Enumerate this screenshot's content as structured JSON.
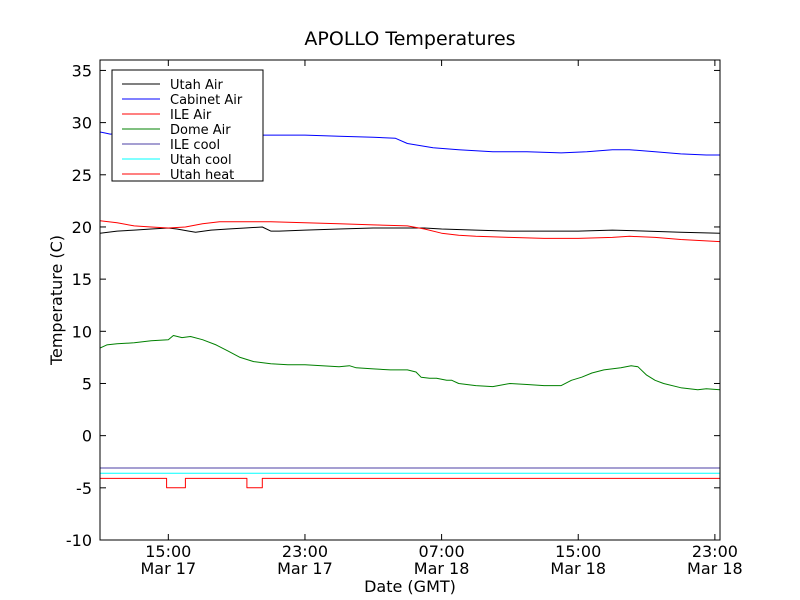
{
  "chart_data": {
    "type": "line",
    "title": "APOLLO Temperatures",
    "xlabel": "Date (GMT)",
    "ylabel": "Temperature (C)",
    "xlim": [
      11.0,
      47.3
    ],
    "ylim": [
      -10,
      36
    ],
    "x_unit": "hours since 00:00 GMT Mar 17",
    "yticks": [
      -10,
      -5,
      0,
      5,
      10,
      15,
      20,
      25,
      30,
      35
    ],
    "xticks": [
      {
        "x": 15,
        "time": "15:00",
        "date": "Mar 17"
      },
      {
        "x": 23,
        "time": "23:00",
        "date": "Mar 17"
      },
      {
        "x": 31,
        "time": "07:00",
        "date": "Mar 18"
      },
      {
        "x": 39,
        "time": "15:00",
        "date": "Mar 18"
      },
      {
        "x": 47,
        "time": "23:00",
        "date": "Mar 18"
      }
    ],
    "legend_position": "top-left",
    "series": [
      {
        "name": "Utah Air",
        "color": "#000000",
        "points": [
          [
            11.0,
            19.4
          ],
          [
            12.0,
            19.6
          ],
          [
            13.0,
            19.7
          ],
          [
            14.0,
            19.8
          ],
          [
            15.0,
            19.9
          ],
          [
            15.5,
            19.8
          ],
          [
            16.2,
            19.6
          ],
          [
            16.6,
            19.5
          ],
          [
            17.5,
            19.7
          ],
          [
            18.5,
            19.8
          ],
          [
            19.5,
            19.9
          ],
          [
            20.5,
            20.0
          ],
          [
            21.0,
            19.6
          ],
          [
            21.5,
            19.6
          ],
          [
            23.0,
            19.7
          ],
          [
            25.0,
            19.8
          ],
          [
            27.0,
            19.9
          ],
          [
            29.0,
            19.9
          ],
          [
            30.0,
            19.9
          ],
          [
            31.0,
            19.8
          ],
          [
            33.0,
            19.7
          ],
          [
            35.0,
            19.6
          ],
          [
            37.0,
            19.6
          ],
          [
            39.0,
            19.6
          ],
          [
            41.0,
            19.7
          ],
          [
            43.0,
            19.6
          ],
          [
            45.0,
            19.5
          ],
          [
            47.3,
            19.4
          ]
        ]
      },
      {
        "name": "Cabinet Air",
        "color": "#0000ff",
        "points": [
          [
            11.0,
            29.1
          ],
          [
            11.3,
            29.0
          ],
          [
            11.6,
            28.9
          ],
          [
            12.5,
            29.0
          ],
          [
            14.0,
            29.1
          ],
          [
            15.0,
            29.1
          ],
          [
            16.0,
            29.0
          ],
          [
            17.5,
            28.9
          ],
          [
            19.0,
            28.8
          ],
          [
            21.0,
            28.8
          ],
          [
            23.0,
            28.8
          ],
          [
            25.0,
            28.7
          ],
          [
            27.0,
            28.6
          ],
          [
            28.3,
            28.5
          ],
          [
            29.0,
            28.0
          ],
          [
            30.5,
            27.6
          ],
          [
            32.0,
            27.4
          ],
          [
            34.0,
            27.2
          ],
          [
            36.0,
            27.2
          ],
          [
            38.0,
            27.1
          ],
          [
            39.5,
            27.2
          ],
          [
            41.0,
            27.4
          ],
          [
            42.0,
            27.4
          ],
          [
            43.5,
            27.2
          ],
          [
            45.0,
            27.0
          ],
          [
            46.5,
            26.9
          ],
          [
            47.3,
            26.9
          ]
        ]
      },
      {
        "name": "ILE Air",
        "color": "#ff0000",
        "points": [
          [
            11.0,
            20.6
          ],
          [
            12.0,
            20.4
          ],
          [
            13.0,
            20.1
          ],
          [
            14.0,
            20.0
          ],
          [
            15.0,
            19.9
          ],
          [
            16.0,
            20.0
          ],
          [
            17.0,
            20.3
          ],
          [
            18.0,
            20.5
          ],
          [
            19.0,
            20.5
          ],
          [
            21.0,
            20.5
          ],
          [
            23.0,
            20.4
          ],
          [
            25.0,
            20.3
          ],
          [
            27.0,
            20.2
          ],
          [
            29.0,
            20.1
          ],
          [
            30.0,
            19.8
          ],
          [
            31.0,
            19.4
          ],
          [
            32.0,
            19.2
          ],
          [
            33.0,
            19.1
          ],
          [
            35.0,
            19.0
          ],
          [
            37.0,
            18.9
          ],
          [
            39.0,
            18.9
          ],
          [
            41.0,
            19.0
          ],
          [
            42.0,
            19.1
          ],
          [
            43.5,
            19.0
          ],
          [
            45.0,
            18.8
          ],
          [
            47.3,
            18.6
          ]
        ]
      },
      {
        "name": "Dome Air",
        "color": "#008000",
        "points": [
          [
            11.0,
            8.4
          ],
          [
            11.4,
            8.7
          ],
          [
            12.0,
            8.8
          ],
          [
            13.0,
            8.9
          ],
          [
            14.0,
            9.1
          ],
          [
            15.0,
            9.2
          ],
          [
            15.3,
            9.6
          ],
          [
            15.8,
            9.4
          ],
          [
            16.3,
            9.5
          ],
          [
            17.0,
            9.2
          ],
          [
            17.8,
            8.7
          ],
          [
            18.5,
            8.1
          ],
          [
            19.2,
            7.5
          ],
          [
            20.0,
            7.1
          ],
          [
            21.0,
            6.9
          ],
          [
            22.0,
            6.8
          ],
          [
            23.0,
            6.8
          ],
          [
            24.0,
            6.7
          ],
          [
            25.0,
            6.6
          ],
          [
            25.6,
            6.7
          ],
          [
            26.0,
            6.5
          ],
          [
            27.0,
            6.4
          ],
          [
            28.0,
            6.3
          ],
          [
            29.0,
            6.3
          ],
          [
            29.5,
            6.1
          ],
          [
            29.8,
            5.6
          ],
          [
            30.3,
            5.5
          ],
          [
            30.7,
            5.5
          ],
          [
            31.3,
            5.3
          ],
          [
            31.6,
            5.3
          ],
          [
            32.0,
            5.0
          ],
          [
            33.0,
            4.8
          ],
          [
            34.0,
            4.7
          ],
          [
            35.0,
            5.0
          ],
          [
            36.0,
            4.9
          ],
          [
            37.0,
            4.8
          ],
          [
            38.0,
            4.8
          ],
          [
            38.6,
            5.3
          ],
          [
            39.2,
            5.6
          ],
          [
            39.8,
            6.0
          ],
          [
            40.5,
            6.3
          ],
          [
            41.5,
            6.5
          ],
          [
            42.1,
            6.7
          ],
          [
            42.5,
            6.6
          ],
          [
            43.0,
            5.8
          ],
          [
            43.5,
            5.3
          ],
          [
            44.0,
            5.0
          ],
          [
            45.0,
            4.6
          ],
          [
            46.0,
            4.4
          ],
          [
            46.5,
            4.5
          ],
          [
            47.3,
            4.4
          ]
        ]
      },
      {
        "name": "ILE cool",
        "color": "#4b3fa6",
        "points": [
          [
            11.0,
            -3.1
          ],
          [
            47.3,
            -3.1
          ]
        ]
      },
      {
        "name": "Utah cool",
        "color": "#00ffff",
        "points": [
          [
            11.0,
            -3.6
          ],
          [
            47.3,
            -3.6
          ]
        ]
      },
      {
        "name": "Utah heat",
        "color": "#ff0000",
        "points": [
          [
            11.0,
            -4.1
          ],
          [
            14.9,
            -4.1
          ],
          [
            14.9,
            -5.0
          ],
          [
            16.0,
            -5.0
          ],
          [
            16.0,
            -4.1
          ],
          [
            19.6,
            -4.1
          ],
          [
            19.6,
            -5.0
          ],
          [
            20.5,
            -5.0
          ],
          [
            20.5,
            -4.1
          ],
          [
            47.3,
            -4.1
          ]
        ]
      }
    ]
  }
}
